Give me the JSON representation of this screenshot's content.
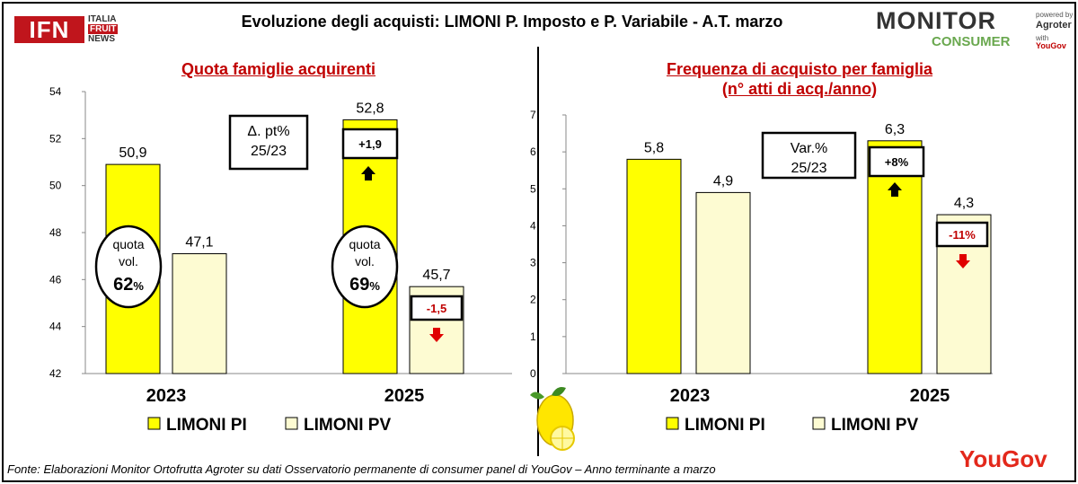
{
  "header": {
    "title": "Evoluzione degli acquisti: LIMONI P. Imposto e P. Variabile  - A.T. marzo"
  },
  "logos": {
    "ifn_mark": "IFN",
    "ifn_sub": [
      "ITALIA",
      "FRUIT",
      "NEWS"
    ],
    "monitor_word": "MONITOR",
    "consumer_word": "CONSUMER",
    "powered_by": "powered by",
    "agroter": "Agroter",
    "with_label": "with",
    "yougov_small": "YouGov",
    "yougov_big": "YouGov"
  },
  "footer": {
    "source": "Fonte: Elaborazioni Monitor Ortofrutta Agroter su dati Osservatorio permanente di consumer panel di YouGov  – Anno terminante a marzo"
  },
  "colors": {
    "pi": "#ffff00",
    "pv": "#fdfbd2",
    "title_red": "#c00000",
    "arrow_down": "#e00000",
    "arrow_up": "#000000"
  },
  "chart_data": [
    {
      "type": "bar",
      "title": "Quota famiglie acquirenti",
      "categories": [
        "2023",
        "2025"
      ],
      "ylim": [
        42,
        54
      ],
      "yticks": [
        42,
        44,
        46,
        48,
        50,
        52,
        54
      ],
      "grid": false,
      "legend_position": "bottom",
      "series": [
        {
          "name": "LIMONI PI",
          "values": [
            50.9,
            52.8
          ],
          "labels": [
            "50,9",
            "52,8"
          ]
        },
        {
          "name": "LIMONI PV",
          "values": [
            47.1,
            45.7
          ],
          "labels": [
            "47,1",
            "45,7"
          ]
        }
      ],
      "change_box": {
        "line1": "Δ. pt%",
        "line2": "25/23"
      },
      "changes": [
        {
          "series": "LIMONI PI",
          "label": "+1,9",
          "direction": "up"
        },
        {
          "series": "LIMONI PV",
          "label": "-1,5",
          "direction": "down"
        }
      ],
      "ovals": [
        {
          "category": "2023",
          "line1": "quota",
          "line2": "vol.",
          "value": "62",
          "unit": "%"
        },
        {
          "category": "2025",
          "line1": "quota",
          "line2": "vol.",
          "value": "69",
          "unit": "%"
        }
      ]
    },
    {
      "type": "bar",
      "title": "Frequenza di acquisto per famiglia",
      "subtitle": "(n° atti di acq./anno)",
      "categories": [
        "2023",
        "2025"
      ],
      "ylim": [
        0,
        7
      ],
      "yticks": [
        0,
        1,
        2,
        3,
        4,
        5,
        6,
        7
      ],
      "grid": false,
      "legend_position": "bottom",
      "series": [
        {
          "name": "LIMONI PI",
          "values": [
            5.8,
            6.3
          ],
          "labels": [
            "5,8",
            "6,3"
          ]
        },
        {
          "name": "LIMONI PV",
          "values": [
            4.9,
            4.3
          ],
          "labels": [
            "4,9",
            "4,3"
          ]
        }
      ],
      "change_box": {
        "line1": "Var.%",
        "line2": "25/23"
      },
      "changes": [
        {
          "series": "LIMONI PI",
          "label": "+8%",
          "direction": "up"
        },
        {
          "series": "LIMONI PV",
          "label": "-11%",
          "direction": "down"
        }
      ]
    }
  ]
}
